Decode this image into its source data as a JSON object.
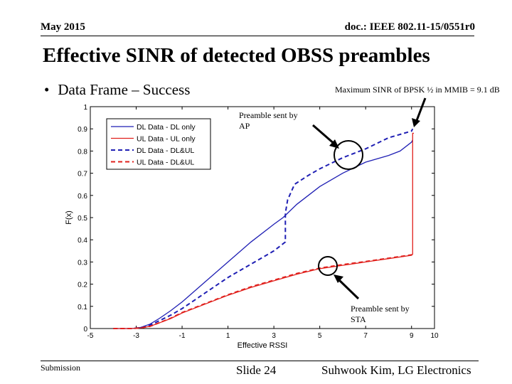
{
  "header": {
    "date": "May 2015",
    "doc_id": "doc.: IEEE 802.11-15/0551r0"
  },
  "title": "Effective SINR of detected OBSS preambles",
  "bullet": {
    "symbol": "•",
    "text": "Data Frame – Success"
  },
  "annotations": {
    "max_sinr": "Maximum SINR of BPSK ½ in MMIB = 9.1 dB",
    "ap_line1": "Preamble sent by",
    "ap_line2": "AP",
    "sta_line1": "Preamble sent by",
    "sta_line2": "STA"
  },
  "footer": {
    "left": "Submission",
    "center": "Slide 24",
    "right": "Suhwook Kim, LG Electronics"
  },
  "chart_data": {
    "type": "line",
    "title": "",
    "xlabel": "Effective RSSI",
    "ylabel": "F(x)",
    "xlim": [
      -5,
      10
    ],
    "ylim": [
      0,
      1
    ],
    "xticks": [
      -5,
      -3,
      -1,
      1,
      3,
      5,
      7,
      9,
      10
    ],
    "xtick_labels": [
      "-5",
      "-3",
      "-1",
      "1",
      "3",
      "5",
      "7",
      "9",
      "10"
    ],
    "yticks": [
      0,
      0.1,
      0.2,
      0.3,
      0.4,
      0.5,
      0.6,
      0.7,
      0.8,
      0.9,
      1
    ],
    "ytick_labels": [
      "0",
      "0.1",
      "0.2",
      "0.3",
      "0.4",
      "0.5",
      "0.6",
      "0.7",
      "0.8",
      "0.9",
      "1"
    ],
    "legend_position": "top-left",
    "series": [
      {
        "name": "DL Data - DL only",
        "color": "#1f1fb4",
        "style": "solid",
        "x": [
          -4,
          -3.2,
          -2.8,
          -2.4,
          -2,
          -1.5,
          -1,
          0,
          1,
          2,
          3,
          3.4,
          4,
          5,
          6,
          7,
          8,
          8.5,
          9,
          9.05
        ],
        "y": [
          0,
          0,
          0.005,
          0.02,
          0.045,
          0.08,
          0.12,
          0.21,
          0.3,
          0.39,
          0.47,
          0.5,
          0.56,
          0.64,
          0.7,
          0.75,
          0.78,
          0.8,
          0.84,
          0.85
        ]
      },
      {
        "name": "UL Data - UL only",
        "color": "#e0201c",
        "style": "solid",
        "x": [
          -4,
          -3.2,
          -2.8,
          -2.4,
          -2,
          -1.5,
          -1,
          0,
          1,
          2,
          3,
          4,
          5,
          6,
          7,
          8,
          9,
          9.05,
          9.05,
          9.1
        ],
        "y": [
          0,
          0,
          0.003,
          0.01,
          0.025,
          0.045,
          0.07,
          0.11,
          0.15,
          0.185,
          0.215,
          0.245,
          0.27,
          0.285,
          0.3,
          0.315,
          0.33,
          0.335,
          0.88,
          0.88
        ]
      },
      {
        "name": "DL Data - DL&UL",
        "color": "#1f1fb4",
        "style": "dashed",
        "x": [
          -4,
          -3.2,
          -2.8,
          -2.4,
          -2,
          -1.5,
          -1,
          0,
          1,
          2,
          3,
          3.5,
          3.5,
          3.6,
          3.9,
          4.5,
          5,
          6,
          7,
          8,
          9,
          9.05
        ],
        "y": [
          0,
          0,
          0.004,
          0.015,
          0.035,
          0.06,
          0.09,
          0.16,
          0.23,
          0.29,
          0.35,
          0.39,
          0.52,
          0.58,
          0.65,
          0.69,
          0.72,
          0.77,
          0.81,
          0.86,
          0.89,
          0.9
        ]
      },
      {
        "name": "UL Data - DL&UL",
        "color": "#e0201c",
        "style": "dashed",
        "x": [
          -4,
          -3.2,
          -2.8,
          -2.4,
          -2,
          -1.5,
          -1,
          0,
          1,
          2,
          3,
          4,
          5,
          6,
          7,
          8,
          9,
          9.05
        ],
        "y": [
          0,
          0,
          0.003,
          0.01,
          0.026,
          0.046,
          0.072,
          0.112,
          0.152,
          0.188,
          0.218,
          0.248,
          0.272,
          0.288,
          0.302,
          0.317,
          0.332,
          0.34
        ]
      }
    ]
  }
}
